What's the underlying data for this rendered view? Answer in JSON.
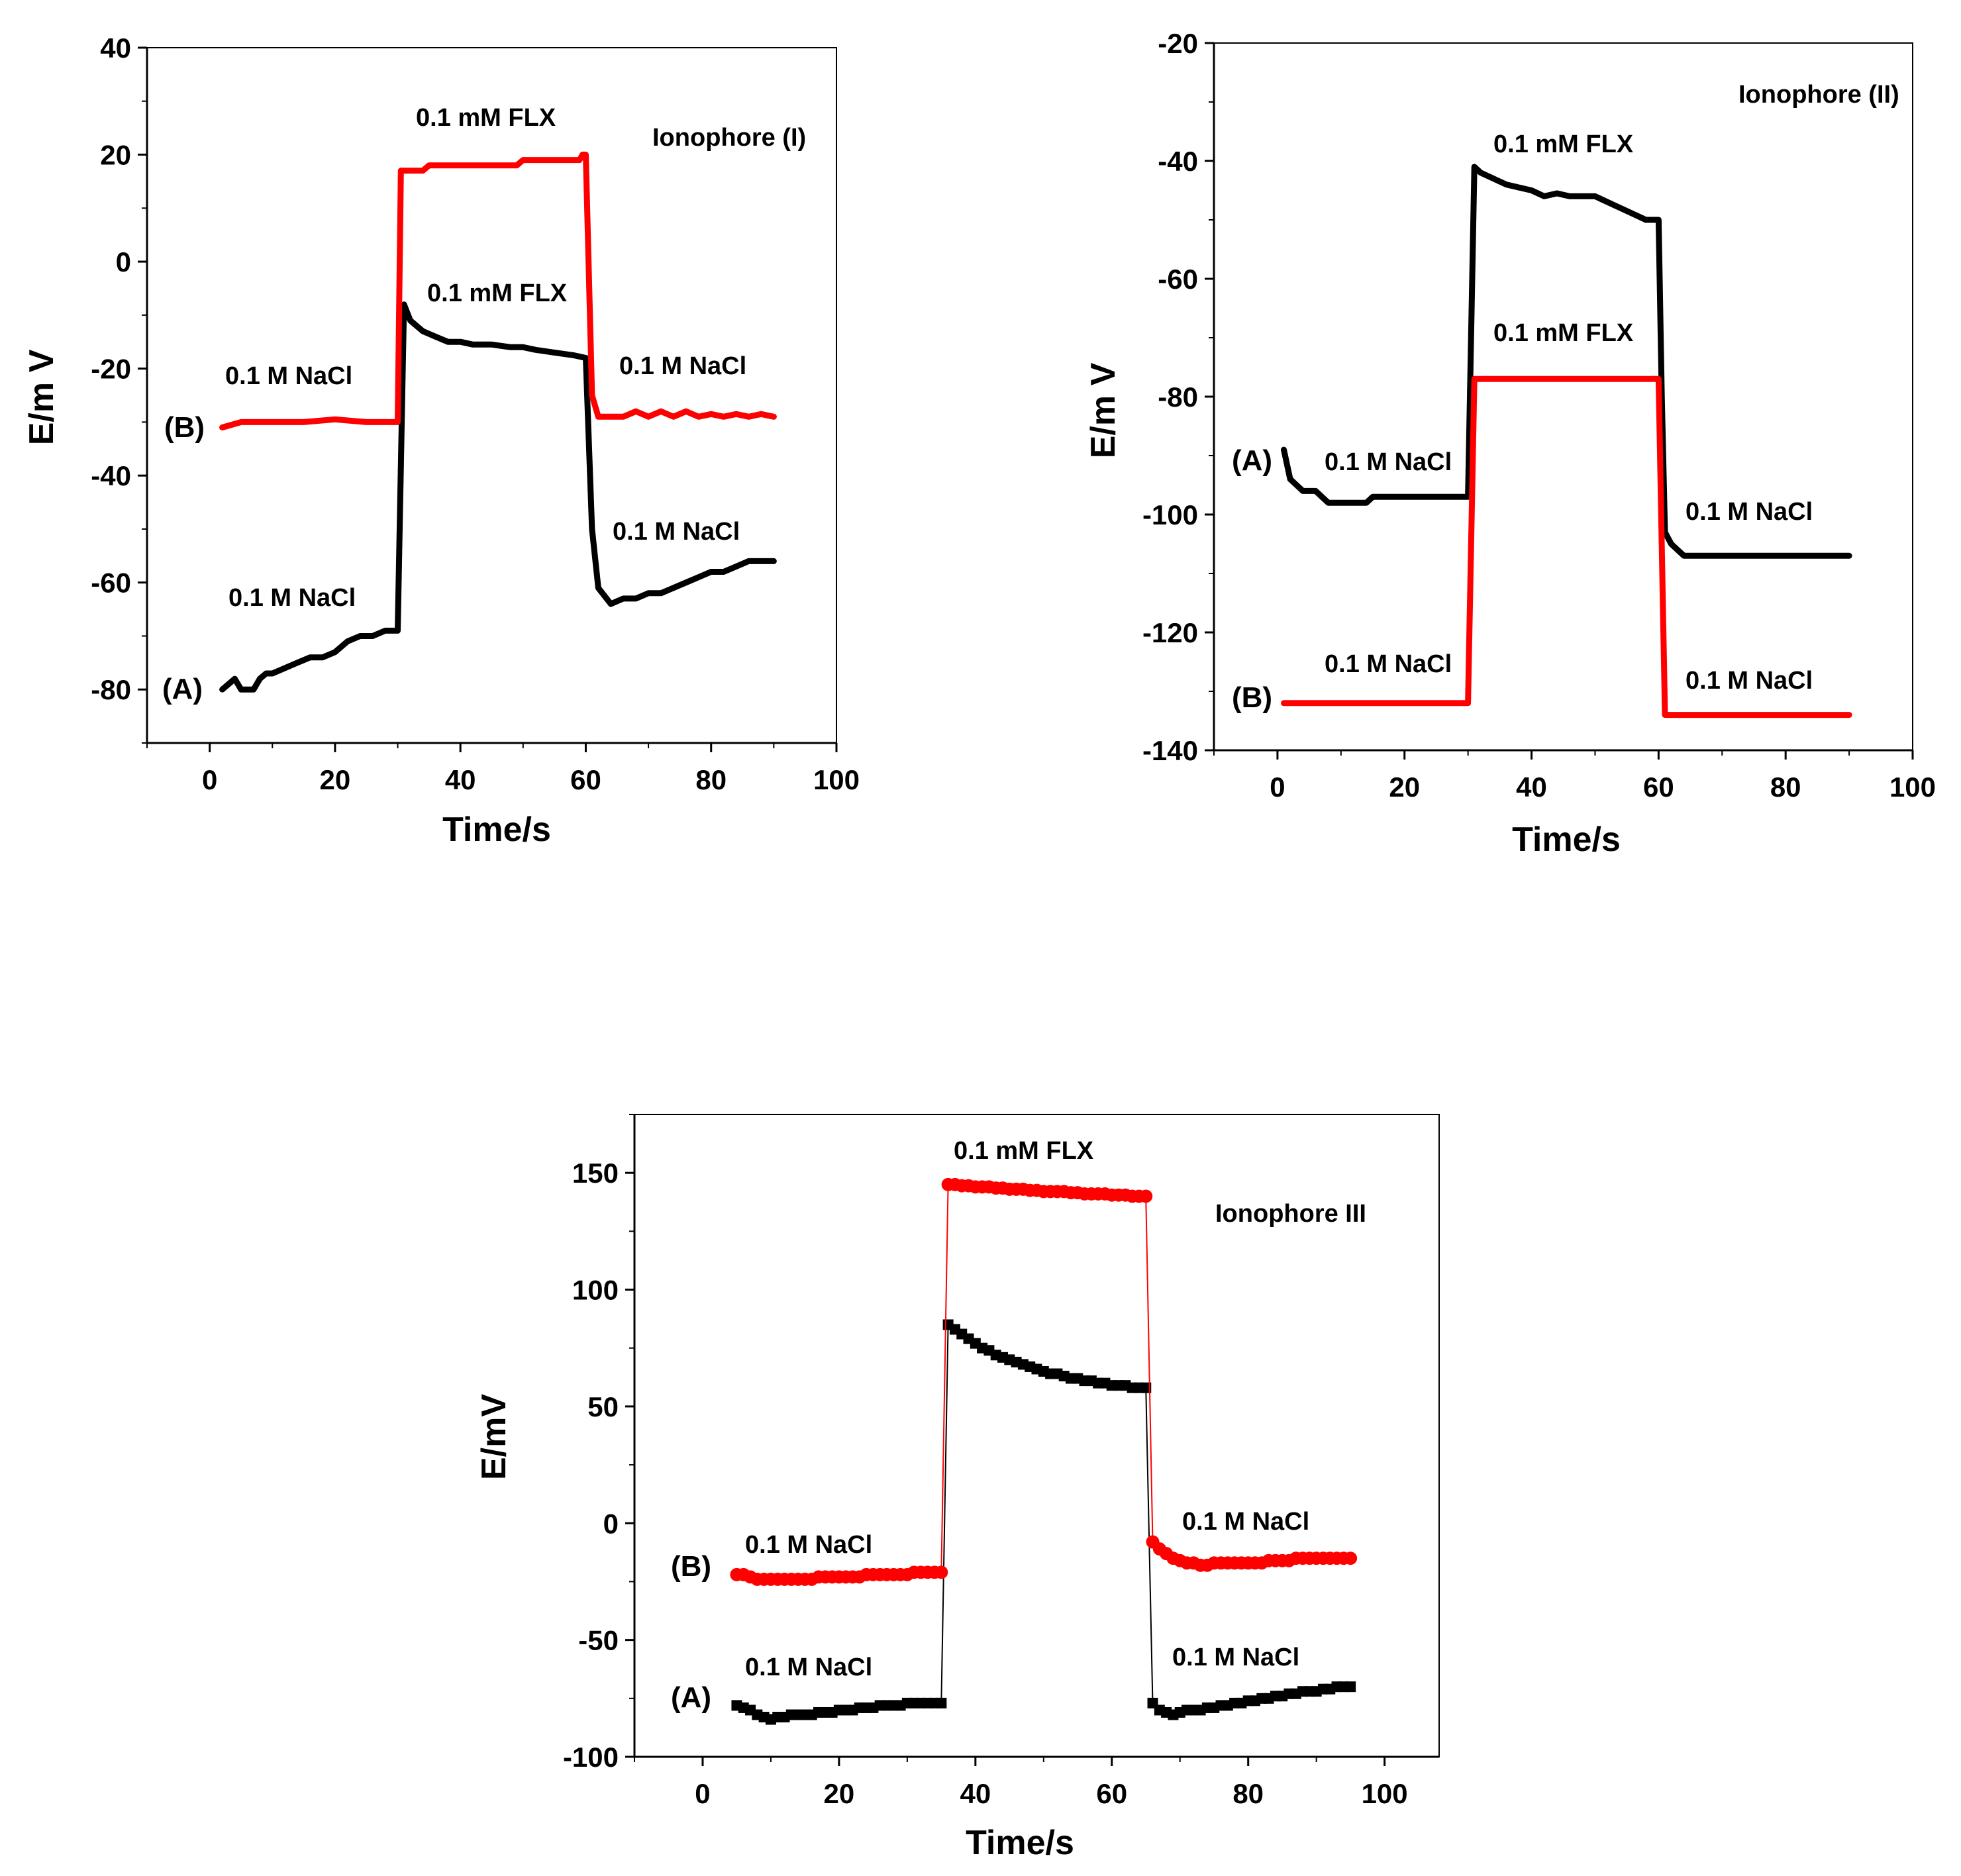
{
  "chart_data": [
    {
      "type": "line",
      "title": "Ionophore (I)",
      "xlabel": "Time/s",
      "ylabel": "E/m V",
      "xlim": [
        -10,
        100
      ],
      "ylim": [
        -90,
        40
      ],
      "xticks": [
        0,
        20,
        40,
        60,
        80,
        100
      ],
      "yticks": [
        -80,
        -60,
        -40,
        -20,
        0,
        20,
        40
      ],
      "marker": "none",
      "series": [
        {
          "name": "(A)",
          "color": "#000000",
          "x": [
            2,
            3,
            4,
            5,
            6,
            7,
            8,
            9,
            10,
            12,
            14,
            16,
            18,
            20,
            22,
            24,
            26,
            28,
            30,
            31,
            32,
            34,
            36,
            38,
            40,
            42,
            45,
            48,
            50,
            52,
            55,
            58,
            60,
            61,
            62,
            64,
            66,
            68,
            70,
            72,
            74,
            76,
            78,
            80,
            82,
            84,
            86,
            88,
            90
          ],
          "values": [
            -80,
            -79,
            -78,
            -80,
            -80,
            -80,
            -78,
            -77,
            -77,
            -76,
            -75,
            -74,
            -74,
            -73,
            -71,
            -70,
            -70,
            -69,
            -69,
            -8,
            -11,
            -13,
            -14,
            -15,
            -15,
            -15.5,
            -15.5,
            -16,
            -16,
            -16.5,
            -17,
            -17.5,
            -18,
            -50,
            -61,
            -64,
            -63,
            -63,
            -62,
            -62,
            -61,
            -60,
            -59,
            -58,
            -58,
            -57,
            -56,
            -56,
            -56
          ]
        },
        {
          "name": "(B)",
          "color": "#ff0000",
          "x": [
            2,
            5,
            10,
            15,
            20,
            25,
            29.5,
            30,
            30.5,
            34,
            35,
            40,
            45,
            49,
            50,
            55,
            59,
            59.5,
            60,
            61,
            62,
            64,
            66,
            68,
            70,
            72,
            74,
            76,
            78,
            80,
            82,
            84,
            86,
            88,
            90
          ],
          "values": [
            -31,
            -30,
            -30,
            -30,
            -29.5,
            -30,
            -30,
            -30,
            17,
            17,
            18,
            18,
            18,
            18,
            19,
            19,
            19,
            20,
            20,
            -25,
            -29,
            -29,
            -29,
            -28,
            -29,
            -28,
            -29,
            -28,
            -29,
            -28.5,
            -29,
            -28.5,
            -29,
            -28.5,
            -29
          ]
        }
      ],
      "labels": {
        "title": "Ionophore (I)",
        "flx_b": "0.1 mM FLX",
        "flx_a": "0.1 mM FLX",
        "nacl_b_left": "0.1 M NaCl",
        "nacl_b_right": "0.1 M NaCl",
        "nacl_a_left": "0.1 M NaCl",
        "nacl_a_right": "0.1 M NaCl",
        "series_a": "(A)",
        "series_b": "(B)"
      }
    },
    {
      "type": "line",
      "title": "Ionophore (II)",
      "xlabel": "Time/s",
      "ylabel": "E/m V",
      "xlim": [
        -10,
        100
      ],
      "ylim": [
        -140,
        -20
      ],
      "xticks": [
        0,
        20,
        40,
        60,
        80,
        100
      ],
      "yticks": [
        -140,
        -120,
        -100,
        -80,
        -60,
        -40,
        -20
      ],
      "marker": "none",
      "series": [
        {
          "name": "(A)",
          "color": "#000000",
          "x": [
            1,
            2,
            3,
            4,
            5,
            6,
            7,
            8,
            10,
            12,
            14,
            15,
            16,
            20,
            25,
            29.5,
            30,
            31,
            32,
            34,
            36,
            38,
            40,
            42,
            44,
            46,
            48,
            50,
            52,
            54,
            56,
            58,
            60,
            60.5,
            61,
            62,
            63,
            64,
            70,
            80,
            90
          ],
          "values": [
            -89,
            -94,
            -95,
            -96,
            -96,
            -96,
            -97,
            -98,
            -98,
            -98,
            -98,
            -97,
            -97,
            -97,
            -97,
            -97,
            -97,
            -41,
            -42,
            -43,
            -44,
            -44.5,
            -45,
            -46,
            -45.5,
            -46,
            -46,
            -46,
            -47,
            -48,
            -49,
            -50,
            -50,
            -80,
            -103,
            -105,
            -106,
            -107,
            -107,
            -107,
            -107
          ]
        },
        {
          "name": "(B)",
          "color": "#ff0000",
          "x": [
            1,
            5,
            10,
            20,
            29.5,
            30,
            31,
            40,
            50,
            59.5,
            60,
            61,
            70,
            80,
            90
          ],
          "values": [
            -132,
            -132,
            -132,
            -132,
            -132,
            -132,
            -77,
            -77,
            -77,
            -77,
            -77,
            -134,
            -134,
            -134,
            -134
          ]
        }
      ],
      "labels": {
        "title": "Ionophore (II)",
        "flx_a": "0.1 mM FLX",
        "flx_b": "0.1 mM FLX",
        "nacl_a_left": "0.1 M NaCl",
        "nacl_a_right": "0.1 M NaCl",
        "nacl_b_left": "0.1 M NaCl",
        "nacl_b_right": "0.1 M NaCl",
        "series_a": "(A)",
        "series_b": "(B)"
      }
    },
    {
      "type": "line",
      "title": "Ionophore III",
      "xlabel": "Time/s",
      "ylabel": "E/mV",
      "xlim": [
        -10,
        108
      ],
      "ylim": [
        -100,
        175
      ],
      "xticks": [
        0,
        20,
        40,
        60,
        80,
        100
      ],
      "yticks": [
        -100,
        -50,
        0,
        50,
        100,
        150
      ],
      "series": [
        {
          "name": "(A)",
          "color": "#000000",
          "marker": "square",
          "x": [
            5,
            6,
            7,
            8,
            9,
            10,
            11,
            12,
            13,
            14,
            15,
            16,
            17,
            18,
            19,
            20,
            21,
            22,
            23,
            24,
            25,
            26,
            27,
            28,
            29,
            30,
            31,
            32,
            33,
            34,
            35,
            36,
            37,
            38,
            39,
            40,
            41,
            42,
            43,
            44,
            45,
            46,
            47,
            48,
            49,
            50,
            51,
            52,
            53,
            54,
            55,
            56,
            57,
            58,
            59,
            60,
            61,
            62,
            63,
            64,
            65,
            66,
            67,
            68,
            69,
            70,
            71,
            72,
            73,
            74,
            75,
            76,
            77,
            78,
            79,
            80,
            81,
            82,
            83,
            84,
            85,
            86,
            87,
            88,
            89,
            90,
            91,
            92,
            93,
            94,
            95
          ],
          "values": [
            -78,
            -79,
            -80,
            -82,
            -83,
            -84,
            -83,
            -83,
            -82,
            -82,
            -82,
            -82,
            -81,
            -81,
            -81,
            -80,
            -80,
            -80,
            -79,
            -79,
            -79,
            -78,
            -78,
            -78,
            -78,
            -77,
            -77,
            -77,
            -77,
            -77,
            -77,
            85,
            83,
            81,
            79,
            77,
            75,
            74,
            72,
            71,
            70,
            69,
            68,
            67,
            66,
            65,
            64,
            64,
            63,
            62,
            62,
            61,
            61,
            60,
            60,
            59,
            59,
            59,
            58,
            58,
            58,
            -77,
            -80,
            -81,
            -82,
            -81,
            -80,
            -80,
            -80,
            -79,
            -79,
            -78,
            -78,
            -77,
            -77,
            -76,
            -76,
            -75,
            -75,
            -74,
            -74,
            -73,
            -73,
            -72,
            -72,
            -72,
            -71,
            -71,
            -70,
            -70,
            -70
          ]
        },
        {
          "name": "(B)",
          "color": "#ff0000",
          "marker": "circle",
          "x": [
            5,
            6,
            7,
            8,
            9,
            10,
            11,
            12,
            13,
            14,
            15,
            16,
            17,
            18,
            19,
            20,
            21,
            22,
            23,
            24,
            25,
            26,
            27,
            28,
            29,
            30,
            31,
            32,
            33,
            34,
            35,
            36,
            37,
            38,
            39,
            40,
            41,
            42,
            43,
            44,
            45,
            46,
            47,
            48,
            49,
            50,
            51,
            52,
            53,
            54,
            55,
            56,
            57,
            58,
            59,
            60,
            61,
            62,
            63,
            64,
            65,
            66,
            67,
            68,
            69,
            70,
            71,
            72,
            73,
            74,
            75,
            76,
            77,
            78,
            79,
            80,
            81,
            82,
            83,
            84,
            85,
            86,
            87,
            88,
            89,
            90,
            91,
            92,
            93,
            94,
            95
          ],
          "values": [
            -22,
            -22,
            -23,
            -24,
            -24,
            -24,
            -24,
            -24,
            -24,
            -24,
            -24,
            -24,
            -23,
            -23,
            -23,
            -23,
            -23,
            -23,
            -23,
            -22,
            -22,
            -22,
            -22,
            -22,
            -22,
            -22,
            -21,
            -21,
            -21,
            -21,
            -21,
            145,
            145,
            144.5,
            144.5,
            144,
            144,
            144,
            143.5,
            143.5,
            143,
            143,
            143,
            142.5,
            142.5,
            142,
            142,
            142,
            142,
            141.5,
            141.5,
            141,
            141,
            141,
            141,
            140.5,
            140.5,
            140.5,
            140,
            140,
            140,
            -8,
            -11,
            -13,
            -15,
            -16,
            -17,
            -17,
            -18,
            -18,
            -17,
            -17,
            -17,
            -17,
            -17,
            -17,
            -17,
            -17,
            -16,
            -16,
            -16,
            -16,
            -15,
            -15,
            -15,
            -15,
            -15,
            -15,
            -15,
            -15,
            -15
          ]
        }
      ],
      "labels": {
        "title": "Ionophore III",
        "flx": "0.1 mM FLX",
        "nacl_b_left": "0.1 M NaCl",
        "nacl_b_right": "0.1 M NaCl",
        "nacl_a_left": "0.1 M NaCl",
        "nacl_a_right": "0.1 M NaCl",
        "series_a": "(A)",
        "series_b": "(B)"
      }
    }
  ]
}
